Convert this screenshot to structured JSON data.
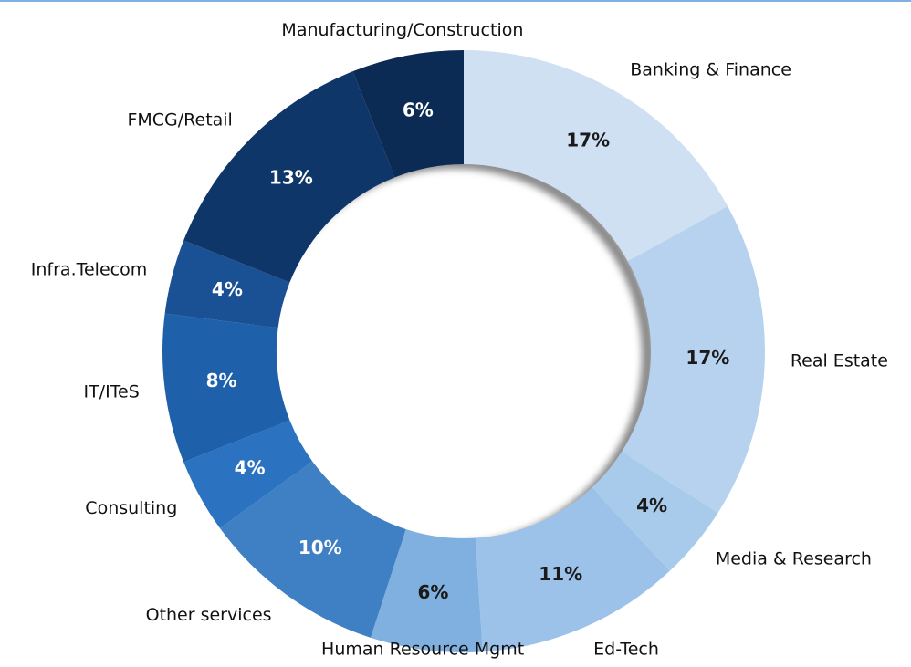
{
  "chart_data": {
    "type": "donut",
    "categories": [
      "Banking & Finance",
      "Real Estate",
      "Media & Research",
      "Ed-Tech",
      "Human Resource Mgmt",
      "Other services",
      "Consulting",
      "IT/ITeS",
      "Infra.Telecom",
      "FMCG/Retail",
      "Manufacturing/Construction"
    ],
    "values": [
      17,
      17,
      4,
      11,
      6,
      10,
      4,
      8,
      4,
      13,
      6
    ],
    "value_labels": [
      "17%",
      "17%",
      "4%",
      "11%",
      "6%",
      "10%",
      "4%",
      "8%",
      "4%",
      "13%",
      "6%"
    ],
    "colors": [
      "#cfe0f3",
      "#b7d2ee",
      "#a8cbec",
      "#9cc2e9",
      "#80b0e0",
      "#3f80c5",
      "#2b73c0",
      "#1e60aa",
      "#1a5094",
      "#0f3668",
      "#0b2b55"
    ]
  }
}
